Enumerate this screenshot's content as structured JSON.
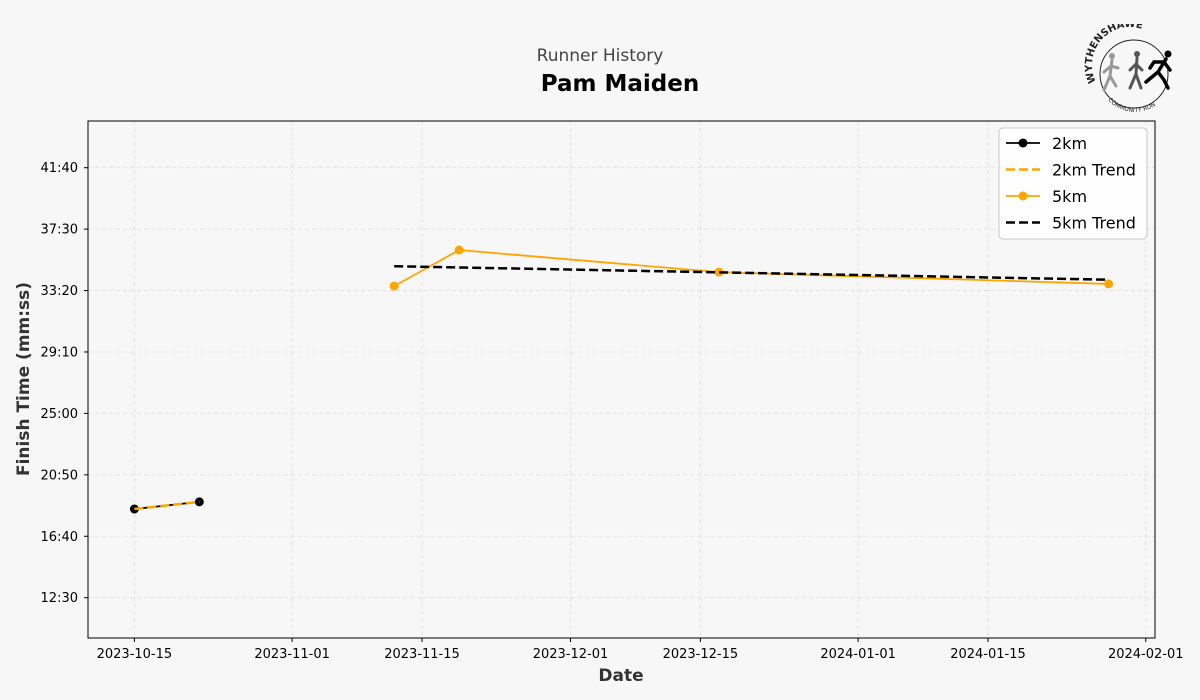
{
  "header": {
    "subtitle": "Runner History",
    "title": "Pam Maiden",
    "logo_text_top": "WYTHENSHAWE",
    "logo_text_bottom": "COMMUNITY RUN"
  },
  "chart_data": {
    "type": "line",
    "xlabel": "Date",
    "ylabel": "Finish Time (mm:ss)",
    "x_ticks": [
      "2023-10-15",
      "2023-11-01",
      "2023-11-15",
      "2023-12-01",
      "2023-12-15",
      "2024-01-01",
      "2024-01-15",
      "2024-02-01"
    ],
    "y_ticks": [
      "12:30",
      "16:40",
      "20:50",
      "25:00",
      "29:10",
      "33:20",
      "37:30",
      "41:40"
    ],
    "xlim": [
      "2023-10-10",
      "2024-02-02"
    ],
    "ylim": [
      "09:46",
      "44:50"
    ],
    "grid": true,
    "legend_position": "top-right",
    "series": [
      {
        "name": "2km",
        "kind": "line-marker",
        "color": "#000000",
        "points": [
          {
            "x": "2023-10-15",
            "y": "18:31"
          },
          {
            "x": "2023-10-22",
            "y": "19:00"
          }
        ]
      },
      {
        "name": "2km Trend",
        "kind": "dashed",
        "color": "#FFA500",
        "points": [
          {
            "x": "2023-10-15",
            "y": "18:31"
          },
          {
            "x": "2023-10-22",
            "y": "19:00"
          }
        ]
      },
      {
        "name": "5km",
        "kind": "line-marker",
        "color": "#FFA500",
        "points": [
          {
            "x": "2023-11-12",
            "y": "33:38"
          },
          {
            "x": "2023-11-19",
            "y": "36:05"
          },
          {
            "x": "2023-12-17",
            "y": "34:35"
          },
          {
            "x": "2024-01-28",
            "y": "33:47"
          }
        ]
      },
      {
        "name": "5km Trend",
        "kind": "dashed",
        "color": "#000000",
        "points": [
          {
            "x": "2023-11-12",
            "y": "34:59"
          },
          {
            "x": "2024-01-28",
            "y": "34:04"
          }
        ]
      }
    ]
  }
}
